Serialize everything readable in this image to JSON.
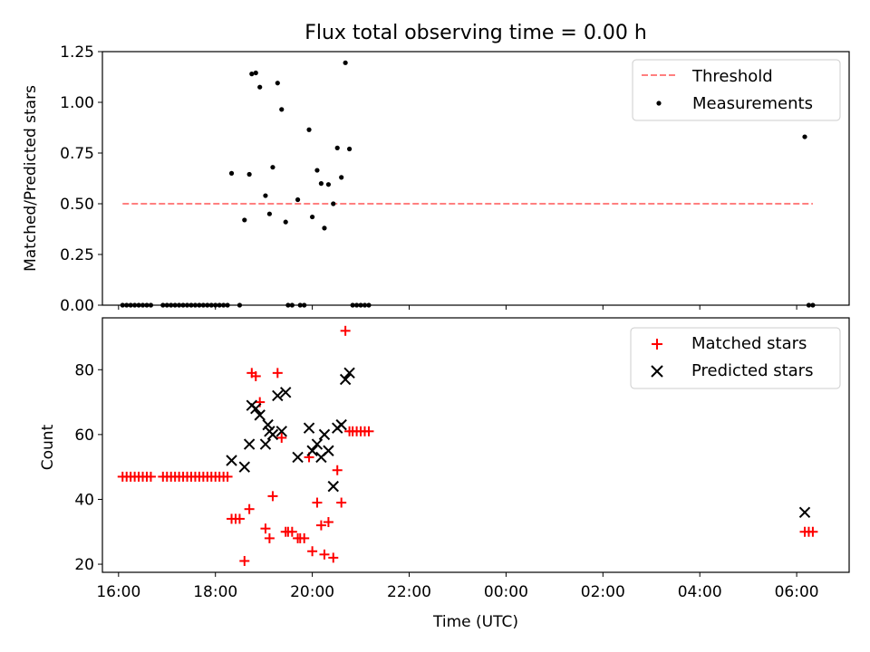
{
  "figure": {
    "title": "Flux total observing time = 0.00 h"
  },
  "chart_data": [
    {
      "type": "scatter",
      "title": "Flux total observing time = 0.00 h",
      "xlabel": "",
      "ylabel": "Matched/Predicted stars",
      "x_unit": "hours since 00:00 UTC of first day",
      "xlim": [
        "15:40",
        "07:05 (+1d)"
      ],
      "ylim": [
        0,
        1.25
      ],
      "yticks": [
        "0.00",
        "0.25",
        "0.50",
        "0.75",
        "1.00",
        "1.25"
      ],
      "legend": {
        "position": "top-right",
        "entries": [
          "Threshold",
          "Measurements"
        ]
      },
      "threshold": {
        "name": "Threshold",
        "value": 0.5,
        "x": [
          "16:05",
          "06:20 (+1d)"
        ],
        "color": "#ff7f7f",
        "style": "dashed"
      },
      "series": [
        {
          "name": "Measurements",
          "color": "#000000",
          "marker": "dot",
          "points": [
            [
              "16:05",
              0
            ],
            [
              "16:10",
              0
            ],
            [
              "16:15",
              0
            ],
            [
              "16:20",
              0
            ],
            [
              "16:25",
              0
            ],
            [
              "16:30",
              0
            ],
            [
              "16:35",
              0
            ],
            [
              "16:40",
              0
            ],
            [
              "16:55",
              0
            ],
            [
              "17:00",
              0
            ],
            [
              "17:05",
              0
            ],
            [
              "17:10",
              0
            ],
            [
              "17:15",
              0
            ],
            [
              "17:20",
              0
            ],
            [
              "17:25",
              0
            ],
            [
              "17:30",
              0
            ],
            [
              "17:35",
              0
            ],
            [
              "17:40",
              0
            ],
            [
              "17:45",
              0
            ],
            [
              "17:50",
              0
            ],
            [
              "17:55",
              0
            ],
            [
              "18:00",
              0
            ],
            [
              "18:05",
              0
            ],
            [
              "18:10",
              0
            ],
            [
              "18:15",
              0
            ],
            [
              "18:20",
              0.65
            ],
            [
              "18:30",
              0
            ],
            [
              "18:36",
              0.42
            ],
            [
              "18:42",
              0.645
            ],
            [
              "18:45",
              1.14
            ],
            [
              "18:50",
              1.145
            ],
            [
              "18:55",
              1.075
            ],
            [
              "19:02",
              0.54
            ],
            [
              "19:07",
              0.45
            ],
            [
              "19:11",
              0.68
            ],
            [
              "19:17",
              1.095
            ],
            [
              "19:22",
              0.965
            ],
            [
              "19:27",
              0.41
            ],
            [
              "19:30",
              0
            ],
            [
              "19:35",
              0
            ],
            [
              "19:42",
              0.52
            ],
            [
              "19:45",
              0
            ],
            [
              "19:50",
              0
            ],
            [
              "19:56",
              0.865
            ],
            [
              "20:00",
              0.435
            ],
            [
              "20:06",
              0.665
            ],
            [
              "20:11",
              0.6
            ],
            [
              "20:15",
              0.38
            ],
            [
              "20:20",
              0.595
            ],
            [
              "20:26",
              0.5
            ],
            [
              "20:31",
              0.775
            ],
            [
              "20:36",
              0.63
            ],
            [
              "20:41",
              1.195
            ],
            [
              "20:46",
              0.77
            ],
            [
              "20:50",
              0
            ],
            [
              "20:55",
              0
            ],
            [
              "21:00",
              0
            ],
            [
              "21:05",
              0
            ],
            [
              "21:10",
              0
            ],
            [
              "06:10 (+1d)",
              0.83
            ],
            [
              "06:15 (+1d)",
              0
            ],
            [
              "06:20 (+1d)",
              0
            ]
          ]
        }
      ]
    },
    {
      "type": "scatter",
      "title": "",
      "xlabel": "Time (UTC)",
      "ylabel": "Count",
      "x_unit": "hours since 00:00 UTC of first day",
      "xlim": [
        "15:40",
        "07:05 (+1d)"
      ],
      "ylim": [
        17.5,
        96
      ],
      "yticks": [
        "20",
        "40",
        "60",
        "80"
      ],
      "xticks": [
        "16:00",
        "18:00",
        "20:00",
        "22:00",
        "00:00",
        "02:00",
        "04:00",
        "06:00"
      ],
      "legend": {
        "position": "top-right",
        "entries": [
          "Matched stars",
          "Predicted stars"
        ]
      },
      "series": [
        {
          "name": "Matched stars",
          "color": "#ff0000",
          "marker": "plus",
          "points": [
            [
              "16:05",
              47
            ],
            [
              "16:10",
              47
            ],
            [
              "16:15",
              47
            ],
            [
              "16:20",
              47
            ],
            [
              "16:25",
              47
            ],
            [
              "16:30",
              47
            ],
            [
              "16:35",
              47
            ],
            [
              "16:40",
              47
            ],
            [
              "16:55",
              47
            ],
            [
              "17:00",
              47
            ],
            [
              "17:05",
              47
            ],
            [
              "17:10",
              47
            ],
            [
              "17:15",
              47
            ],
            [
              "17:20",
              47
            ],
            [
              "17:25",
              47
            ],
            [
              "17:30",
              47
            ],
            [
              "17:35",
              47
            ],
            [
              "17:40",
              47
            ],
            [
              "17:45",
              47
            ],
            [
              "17:50",
              47
            ],
            [
              "17:55",
              47
            ],
            [
              "18:00",
              47
            ],
            [
              "18:05",
              47
            ],
            [
              "18:10",
              47
            ],
            [
              "18:15",
              47
            ],
            [
              "18:20",
              34
            ],
            [
              "18:25",
              34
            ],
            [
              "18:30",
              34
            ],
            [
              "18:36",
              21
            ],
            [
              "18:42",
              37
            ],
            [
              "18:45",
              79
            ],
            [
              "18:50",
              78
            ],
            [
              "18:55",
              70
            ],
            [
              "19:02",
              31
            ],
            [
              "19:07",
              28
            ],
            [
              "19:11",
              41
            ],
            [
              "19:17",
              79
            ],
            [
              "19:22",
              59
            ],
            [
              "19:27",
              30
            ],
            [
              "19:30",
              30
            ],
            [
              "19:35",
              30
            ],
            [
              "19:42",
              28
            ],
            [
              "19:45",
              28
            ],
            [
              "19:50",
              28
            ],
            [
              "19:56",
              53
            ],
            [
              "20:00",
              24
            ],
            [
              "20:06",
              39
            ],
            [
              "20:11",
              32
            ],
            [
              "20:15",
              23
            ],
            [
              "20:20",
              33
            ],
            [
              "20:26",
              22
            ],
            [
              "20:31",
              49
            ],
            [
              "20:36",
              39
            ],
            [
              "20:41",
              92
            ],
            [
              "20:46",
              61
            ],
            [
              "20:50",
              61
            ],
            [
              "20:55",
              61
            ],
            [
              "21:00",
              61
            ],
            [
              "21:05",
              61
            ],
            [
              "21:10",
              61
            ],
            [
              "06:10 (+1d)",
              30
            ],
            [
              "06:15 (+1d)",
              30
            ],
            [
              "06:20 (+1d)",
              30
            ]
          ]
        },
        {
          "name": "Predicted stars",
          "color": "#000000",
          "marker": "x",
          "points": [
            [
              "18:20",
              52
            ],
            [
              "18:36",
              50
            ],
            [
              "18:42",
              57
            ],
            [
              "18:45",
              69
            ],
            [
              "18:50",
              68
            ],
            [
              "18:55",
              66
            ],
            [
              "19:02",
              57
            ],
            [
              "19:05",
              63
            ],
            [
              "19:07",
              61
            ],
            [
              "19:11",
              60
            ],
            [
              "19:17",
              72
            ],
            [
              "19:22",
              61
            ],
            [
              "19:27",
              73
            ],
            [
              "19:42",
              53
            ],
            [
              "19:56",
              62
            ],
            [
              "20:00",
              55
            ],
            [
              "20:06",
              57
            ],
            [
              "20:11",
              53
            ],
            [
              "20:15",
              60
            ],
            [
              "20:20",
              55
            ],
            [
              "20:26",
              44
            ],
            [
              "20:31",
              62
            ],
            [
              "20:36",
              63
            ],
            [
              "20:41",
              77
            ],
            [
              "20:46",
              79
            ],
            [
              "06:10 (+1d)",
              36
            ]
          ]
        }
      ]
    }
  ]
}
